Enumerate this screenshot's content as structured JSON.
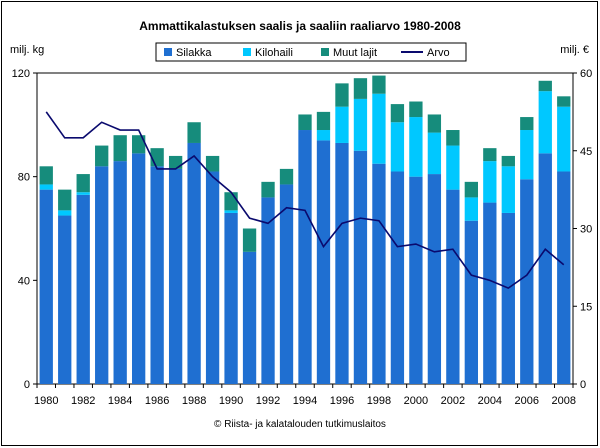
{
  "chart_data": {
    "type": "bar",
    "title": "Ammattikalastuksen saalis ja saaliin raaliarvo 1980-2008",
    "ylabel_left": "milj. kg",
    "ylabel_right": "milj. €",
    "footer": "© Riista- ja kalatalouden tutkimuslaitos",
    "ylim_left": [
      0,
      120
    ],
    "yticks_left": [
      0,
      40,
      80,
      120
    ],
    "ylim_right": [
      0,
      60
    ],
    "yticks_right": [
      0,
      15,
      30,
      45,
      60
    ],
    "years": [
      1980,
      1981,
      1982,
      1983,
      1984,
      1985,
      1986,
      1987,
      1988,
      1989,
      1990,
      1991,
      1992,
      1993,
      1994,
      1995,
      1996,
      1997,
      1998,
      1999,
      2000,
      2001,
      2002,
      2003,
      2004,
      2005,
      2006,
      2007,
      2008
    ],
    "xtick_labels": [
      "1980",
      "1982",
      "1984",
      "1986",
      "1988",
      "1990",
      "1992",
      "1994",
      "1996",
      "1998",
      "2000",
      "2002",
      "2004",
      "2006",
      "2008"
    ],
    "legend_position": "top",
    "grid": false,
    "colors": {
      "silakka": "#1f6fd1",
      "kilohaili": "#00c8ff",
      "muut": "#168c7c",
      "arvo": "#0a0a6e",
      "plot_bg": "#ffffff"
    },
    "series": [
      {
        "name": "Silakka",
        "key": "silakka",
        "values": [
          75,
          65,
          73,
          84,
          86,
          89,
          84,
          83,
          93,
          82,
          66,
          51,
          72,
          77,
          98,
          94,
          93,
          90,
          85,
          82,
          80,
          81,
          75,
          63,
          70,
          66,
          79,
          89,
          82
        ]
      },
      {
        "name": "Kilohaili",
        "key": "kilohaili",
        "values": [
          2,
          2,
          1,
          0,
          0,
          0,
          0,
          0,
          0,
          0,
          1,
          0,
          0,
          0,
          0,
          4,
          14,
          20,
          27,
          19,
          23,
          16,
          17,
          9,
          16,
          18,
          19,
          24,
          25
        ]
      },
      {
        "name": "Muut lajit",
        "key": "muut",
        "values": [
          7,
          8,
          7,
          8,
          10,
          7,
          7,
          5,
          8,
          6,
          7,
          9,
          6,
          6,
          6,
          7,
          9,
          8,
          7,
          7,
          6,
          7,
          6,
          6,
          5,
          4,
          5,
          4,
          4
        ]
      },
      {
        "name": "Arvo",
        "key": "arvo",
        "axis": "right",
        "type": "line",
        "values": [
          52.5,
          47.5,
          47.5,
          50.5,
          49,
          49,
          41.5,
          41.5,
          44,
          40,
          37,
          32,
          31,
          34,
          33.5,
          26.5,
          31,
          32,
          31.5,
          26.5,
          27,
          25.5,
          26,
          21,
          20,
          18.5,
          21,
          26,
          23
        ]
      }
    ]
  }
}
